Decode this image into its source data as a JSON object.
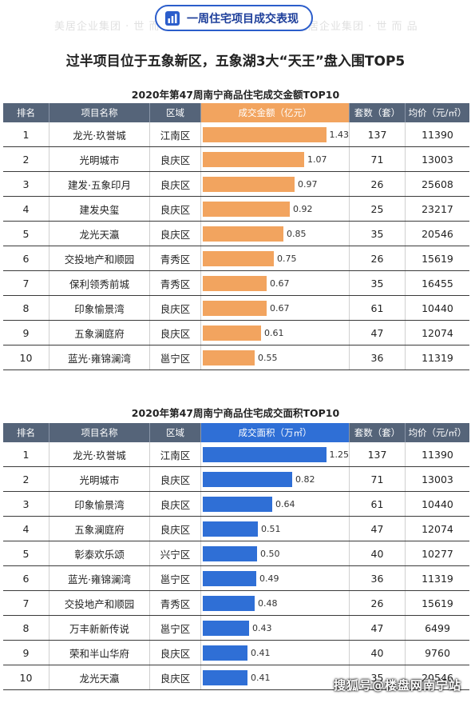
{
  "watermark": "美居企业集团 · 世 而 品",
  "header_pill": {
    "label": "一周住宅项目成交表现"
  },
  "headline": "过半项目位于五象新区，五象湖3大“天王”盘入围TOP5",
  "tables": [
    {
      "caption": "2020年第47周南宁商品住宅成交金额TOP10",
      "columns": [
        "排名",
        "项目名称",
        "区域",
        "成交金额（亿元）",
        "套数（套）",
        "均价（元/㎡）"
      ],
      "max": 1.43,
      "bar_color": "#f2a45f",
      "rows": [
        {
          "rank": "1",
          "name": "龙光·玖誉城",
          "area": "江南区",
          "value": 1.43,
          "label": "1.43",
          "sets": "137",
          "price": "11390"
        },
        {
          "rank": "2",
          "name": "光明城市",
          "area": "良庆区",
          "value": 1.07,
          "label": "1.07",
          "sets": "71",
          "price": "13003"
        },
        {
          "rank": "3",
          "name": "建发·五象印月",
          "area": "良庆区",
          "value": 0.97,
          "label": "0.97",
          "sets": "26",
          "price": "25608"
        },
        {
          "rank": "4",
          "name": "建发央玺",
          "area": "良庆区",
          "value": 0.92,
          "label": "0.92",
          "sets": "25",
          "price": "23217"
        },
        {
          "rank": "5",
          "name": "龙光天瀛",
          "area": "良庆区",
          "value": 0.85,
          "label": "0.85",
          "sets": "35",
          "price": "20546"
        },
        {
          "rank": "6",
          "name": "交投地产和顺园",
          "area": "青秀区",
          "value": 0.75,
          "label": "0.75",
          "sets": "26",
          "price": "15619"
        },
        {
          "rank": "7",
          "name": "保利领秀前城",
          "area": "青秀区",
          "value": 0.67,
          "label": "0.67",
          "sets": "35",
          "price": "16455"
        },
        {
          "rank": "8",
          "name": "印象愉景湾",
          "area": "良庆区",
          "value": 0.67,
          "label": "0.67",
          "sets": "61",
          "price": "10440"
        },
        {
          "rank": "9",
          "name": "五象澜庭府",
          "area": "良庆区",
          "value": 0.61,
          "label": "0.61",
          "sets": "47",
          "price": "12074"
        },
        {
          "rank": "10",
          "name": "蓝光·雍锦澜湾",
          "area": "邕宁区",
          "value": 0.55,
          "label": "0.55",
          "sets": "36",
          "price": "11319"
        }
      ]
    },
    {
      "caption": "2020年第47周南宁商品住宅成交面积TOP10",
      "columns": [
        "排名",
        "项目名称",
        "区域",
        "成交面积（万㎡）",
        "套数（套）",
        "均价（元/㎡）"
      ],
      "max": 1.25,
      "bar_color": "#2f6fd6",
      "rows": [
        {
          "rank": "1",
          "name": "龙光·玖誉城",
          "area": "江南区",
          "value": 1.25,
          "label": "1.25",
          "sets": "137",
          "price": "11390"
        },
        {
          "rank": "2",
          "name": "光明城市",
          "area": "良庆区",
          "value": 0.82,
          "label": "0.82",
          "sets": "71",
          "price": "13003"
        },
        {
          "rank": "3",
          "name": "印象愉景湾",
          "area": "良庆区",
          "value": 0.64,
          "label": "0.64",
          "sets": "61",
          "price": "10440"
        },
        {
          "rank": "4",
          "name": "五象澜庭府",
          "area": "良庆区",
          "value": 0.51,
          "label": "0.51",
          "sets": "47",
          "price": "12074"
        },
        {
          "rank": "5",
          "name": "彰泰欢乐颂",
          "area": "兴宁区",
          "value": 0.5,
          "label": "0.50",
          "sets": "40",
          "price": "10277"
        },
        {
          "rank": "6",
          "name": "蓝光·雍锦澜湾",
          "area": "邕宁区",
          "value": 0.49,
          "label": "0.49",
          "sets": "36",
          "price": "11319"
        },
        {
          "rank": "7",
          "name": "交投地产和顺园",
          "area": "青秀区",
          "value": 0.48,
          "label": "0.48",
          "sets": "26",
          "price": "15619"
        },
        {
          "rank": "8",
          "name": "万丰新新传说",
          "area": "邕宁区",
          "value": 0.43,
          "label": "0.43",
          "sets": "47",
          "price": "6499"
        },
        {
          "rank": "9",
          "name": "荣和半山华府",
          "area": "良庆区",
          "value": 0.41,
          "label": "0.41",
          "sets": "40",
          "price": "9760"
        },
        {
          "rank": "10",
          "name": "龙光天瀛",
          "area": "良庆区",
          "value": 0.41,
          "label": "0.41",
          "sets": "35",
          "price": "20546"
        }
      ]
    }
  ],
  "source_mark": "搜狐号@楼盘网南宁站"
}
